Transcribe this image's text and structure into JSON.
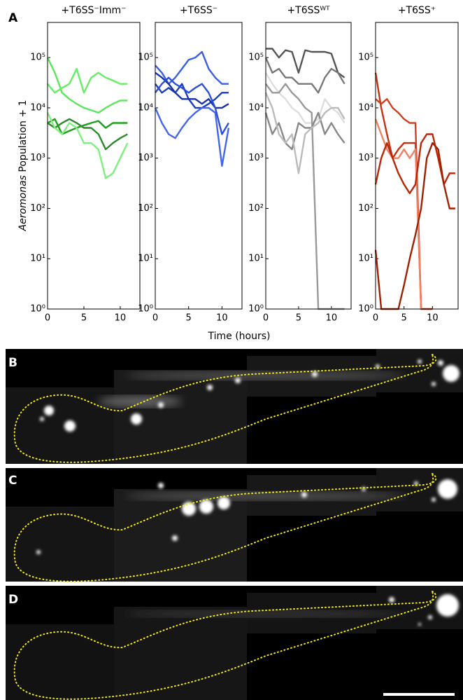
{
  "panel_labels": [
    "A",
    "B",
    "C",
    "D"
  ],
  "ylabel": [
    "Aeromonas",
    "Population + 1"
  ],
  "xlabel": "Time (hours)",
  "chart_data": [
    {
      "type": "line",
      "title": "+T6SS⁻Imm⁻",
      "log_y": true,
      "x": [
        0,
        1,
        2,
        3,
        4,
        5,
        6,
        7,
        8,
        9,
        10,
        11
      ],
      "xlim": [
        0,
        12.7
      ],
      "xticks": [
        0,
        5,
        10
      ],
      "ylim": [
        1,
        500000
      ],
      "yticks": [
        {
          "value": 1,
          "label": "10⁰"
        },
        {
          "value": 10,
          "label": "10¹"
        },
        {
          "value": 100,
          "label": "10²"
        },
        {
          "value": 1000,
          "label": "10³"
        },
        {
          "value": 10000,
          "label": "10⁴"
        },
        {
          "value": 100000,
          "label": "10⁵"
        }
      ],
      "series": [
        {
          "color": "#5de65d",
          "values": [
            100000,
            50000,
            20000,
            15000,
            12000,
            10000,
            9000,
            8000,
            10000,
            12000,
            14000,
            14000
          ]
        },
        {
          "color": "#66ee66",
          "values": [
            30000,
            20000,
            25000,
            30000,
            60000,
            20000,
            40000,
            50000,
            40000,
            35000,
            30000,
            30000
          ]
        },
        {
          "color": "#2a8a2a",
          "values": [
            5000,
            4000,
            5000,
            6000,
            5000,
            4000,
            4000,
            3000,
            1500,
            2000,
            2500,
            3000
          ]
        },
        {
          "color": "#1aa01a",
          "values": [
            5000,
            6000,
            3000,
            3500,
            4000,
            4500,
            5000,
            5500,
            4000,
            5000,
            5000,
            5000
          ]
        },
        {
          "color": "#7ef07e",
          "values": [
            8000,
            4000,
            3000,
            5000,
            4000,
            2000,
            2000,
            1500,
            400,
            500,
            1000,
            2000
          ]
        }
      ]
    },
    {
      "type": "line",
      "title": "+T6SS⁻",
      "log_y": true,
      "x": [
        0,
        1,
        2,
        3,
        4,
        5,
        6,
        7,
        8,
        9,
        10,
        11
      ],
      "xlim": [
        0,
        13
      ],
      "xticks": [
        0,
        5,
        10
      ],
      "ylim": [
        1,
        500000
      ],
      "yticks": [
        {
          "value": 1,
          "label": "10⁰"
        },
        {
          "value": 10,
          "label": "10¹"
        },
        {
          "value": 100,
          "label": "10²"
        },
        {
          "value": 1000,
          "label": "10³"
        },
        {
          "value": 10000,
          "label": "10⁴"
        },
        {
          "value": 100000,
          "label": "10⁵"
        }
      ],
      "series": [
        {
          "color": "#3a5fe0",
          "values": [
            70000,
            50000,
            30000,
            40000,
            60000,
            90000,
            100000,
            130000,
            60000,
            40000,
            30000,
            30000
          ]
        },
        {
          "color": "#1a3cc0",
          "values": [
            30000,
            20000,
            25000,
            20000,
            30000,
            15000,
            10000,
            10000,
            12000,
            15000,
            20000,
            20000
          ]
        },
        {
          "color": "#4466ee",
          "values": [
            10000,
            5000,
            3000,
            2500,
            4000,
            6000,
            8000,
            10000,
            10000,
            8000,
            700,
            4000
          ]
        },
        {
          "color": "#1830a8",
          "values": [
            50000,
            40000,
            30000,
            20000,
            15000,
            15000,
            15000,
            12000,
            15000,
            10000,
            10000,
            12000
          ]
        },
        {
          "color": "#2c4fd8",
          "values": [
            20000,
            30000,
            40000,
            30000,
            25000,
            20000,
            25000,
            30000,
            20000,
            10000,
            3000,
            5000
          ]
        }
      ]
    },
    {
      "type": "line",
      "title": "+T6SSᵂᵀ",
      "log_y": true,
      "x": [
        0,
        1,
        2,
        3,
        4,
        5,
        6,
        7,
        8,
        9,
        10,
        11,
        12
      ],
      "xlim": [
        0,
        13
      ],
      "xticks": [
        0,
        5,
        10
      ],
      "ylim": [
        1,
        500000
      ],
      "yticks": [
        {
          "value": 1,
          "label": "10⁰"
        },
        {
          "value": 10,
          "label": "10¹"
        },
        {
          "value": 100,
          "label": "10²"
        },
        {
          "value": 1000,
          "label": "10³"
        },
        {
          "value": 10000,
          "label": "10⁴"
        },
        {
          "value": 100000,
          "label": "10⁵"
        }
      ],
      "series": [
        {
          "color": "#555555",
          "values": [
            150000,
            150000,
            100000,
            140000,
            130000,
            50000,
            140000,
            130000,
            130000,
            130000,
            120000,
            50000,
            40000
          ]
        },
        {
          "color": "#777777",
          "values": [
            100000,
            50000,
            60000,
            40000,
            40000,
            30000,
            30000,
            30000,
            20000,
            40000,
            60000,
            50000,
            30000
          ]
        },
        {
          "color": "#dddddd",
          "values": [
            50000,
            30000,
            20000,
            15000,
            10000,
            8000,
            5000,
            5000,
            6000,
            15000,
            10000,
            8000,
            5000
          ]
        },
        {
          "color": "#999999",
          "values": [
            30000,
            20000,
            20000,
            30000,
            20000,
            15000,
            10000,
            8000,
            1,
            1,
            1,
            1,
            1
          ]
        },
        {
          "color": "#888888",
          "values": [
            8000,
            3000,
            5000,
            2000,
            1500,
            5000,
            4000,
            4000,
            8000,
            3000,
            5000,
            3000,
            2000
          ]
        },
        {
          "color": "#bbbbbb",
          "values": [
            20000,
            10000,
            3000,
            2000,
            3000,
            500,
            3000,
            4000,
            5000,
            8000,
            10000,
            10000,
            6000
          ]
        }
      ]
    },
    {
      "type": "line",
      "title": "+T6SS⁺",
      "log_y": true,
      "x": [
        0,
        1,
        2,
        3,
        4,
        5,
        6,
        7,
        8,
        9,
        10,
        11,
        12,
        13,
        14
      ],
      "xlim": [
        0,
        14.5
      ],
      "xticks": [
        0,
        5,
        10
      ],
      "ylim": [
        1,
        500000
      ],
      "yticks": [
        {
          "value": 1,
          "label": "10⁰"
        },
        {
          "value": 10,
          "label": "10¹"
        },
        {
          "value": 100,
          "label": "10²"
        },
        {
          "value": 1000,
          "label": "10³"
        },
        {
          "value": 10000,
          "label": "10⁴"
        },
        {
          "value": 100000,
          "label": "10⁵"
        }
      ],
      "series": [
        {
          "color": "#c83010",
          "values": [
            50000,
            10000,
            3000,
            1000,
            1500,
            2000,
            2000,
            2000,
            1,
            1,
            1,
            null,
            null,
            null,
            null
          ]
        },
        {
          "color": "#d04020",
          "values": [
            15000,
            12000,
            15000,
            10000,
            8000,
            6000,
            5000,
            5000,
            1,
            null,
            null,
            null,
            null,
            null,
            null
          ]
        },
        {
          "color": "#f08060",
          "values": [
            6000,
            3000,
            1500,
            1000,
            1000,
            1500,
            1000,
            1500,
            1,
            null,
            null,
            null,
            null,
            null,
            null
          ]
        },
        {
          "color": "#b82808",
          "values": [
            300,
            1000,
            2000,
            1000,
            500,
            300,
            200,
            300,
            2000,
            3000,
            3000,
            1000,
            300,
            500,
            500
          ]
        },
        {
          "color": "#a02000",
          "values": [
            15,
            1,
            1,
            1,
            1,
            3,
            10,
            30,
            100,
            1000,
            2000,
            1500,
            300,
            100,
            100
          ]
        }
      ]
    }
  ]
}
